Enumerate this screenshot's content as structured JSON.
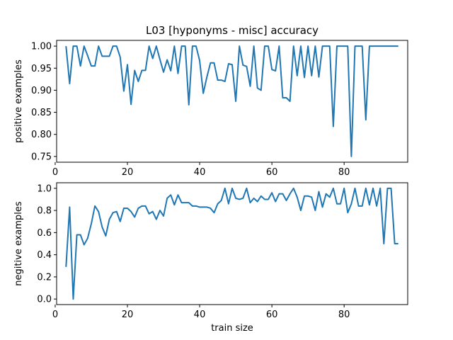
{
  "chart_data": {
    "type": "line",
    "title": "L03 [hyponyms - misc] accuracy",
    "xlabel": "train size",
    "line_color": "#1f77b4",
    "x": [
      3,
      4,
      5,
      6,
      7,
      8,
      9,
      10,
      11,
      12,
      13,
      14,
      15,
      16,
      17,
      18,
      19,
      20,
      21,
      22,
      23,
      24,
      25,
      26,
      27,
      28,
      29,
      30,
      31,
      32,
      33,
      34,
      35,
      36,
      37,
      38,
      39,
      40,
      41,
      42,
      43,
      44,
      45,
      46,
      47,
      48,
      49,
      50,
      51,
      52,
      53,
      54,
      55,
      56,
      57,
      58,
      59,
      60,
      61,
      62,
      63,
      64,
      65,
      66,
      67,
      68,
      69,
      70,
      71,
      72,
      73,
      74,
      75,
      76,
      77,
      78,
      79,
      80,
      81,
      82,
      83,
      84,
      85,
      86,
      87,
      88,
      89,
      90,
      91,
      92,
      93,
      94,
      95
    ],
    "panels": [
      {
        "ylabel": "positive examples",
        "xlim": [
          0.4,
          97.6
        ],
        "ylim": [
          0.737,
          1.013
        ],
        "xticks": [
          0,
          20,
          40,
          60,
          80
        ],
        "xtick_labels": [
          "0",
          "20",
          "40",
          "60",
          "80"
        ],
        "yticks": [
          0.75,
          0.8,
          0.85,
          0.9,
          0.95,
          1.0
        ],
        "ytick_labels": [
          "0.75",
          "0.80",
          "0.85",
          "0.90",
          "0.95",
          "1.00"
        ],
        "values": [
          1.0,
          0.915,
          1.0,
          1.0,
          0.955,
          1.0,
          0.978,
          0.955,
          0.955,
          1.0,
          0.977,
          0.977,
          0.977,
          1.0,
          1.0,
          0.975,
          0.898,
          0.958,
          0.868,
          0.945,
          0.92,
          0.945,
          0.945,
          1.0,
          0.972,
          1.0,
          0.97,
          0.941,
          0.969,
          0.944,
          1.0,
          0.938,
          1.0,
          1.0,
          0.867,
          1.0,
          1.0,
          0.967,
          0.893,
          0.93,
          0.962,
          0.962,
          0.923,
          0.923,
          0.92,
          0.96,
          0.958,
          0.875,
          1.0,
          0.957,
          0.954,
          0.909,
          1.0,
          0.905,
          0.9,
          1.0,
          1.0,
          0.947,
          0.944,
          1.0,
          0.883,
          0.883,
          0.875,
          1.0,
          0.933,
          1.0,
          0.929,
          1.0,
          0.933,
          1.0,
          0.93,
          1.0,
          1.0,
          1.0,
          0.818,
          1.0,
          1.0,
          1.0,
          1.0,
          0.75,
          1.0,
          1.0,
          1.0,
          0.833,
          1.0,
          1.0,
          1.0,
          1.0,
          1.0,
          1.0,
          1.0,
          1.0,
          1.0
        ]
      },
      {
        "ylabel": "negitive examples",
        "xtick_labels": [
          "0",
          "20",
          "40",
          "60",
          "80"
        ],
        "xlim": [
          0.4,
          97.6
        ],
        "ylim": [
          -0.05,
          1.05
        ],
        "xticks": [
          0,
          20,
          40,
          60,
          80
        ],
        "yticks": [
          0.0,
          0.2,
          0.4,
          0.6,
          0.8,
          1.0
        ],
        "ytick_labels": [
          "0.0",
          "0.2",
          "0.4",
          "0.6",
          "0.8",
          "1.0"
        ],
        "values": [
          0.29,
          0.83,
          0.0,
          0.58,
          0.58,
          0.49,
          0.55,
          0.68,
          0.84,
          0.79,
          0.65,
          0.57,
          0.72,
          0.78,
          0.79,
          0.7,
          0.82,
          0.82,
          0.79,
          0.74,
          0.82,
          0.84,
          0.84,
          0.77,
          0.79,
          0.72,
          0.8,
          0.75,
          0.91,
          0.94,
          0.85,
          0.94,
          0.87,
          0.87,
          0.87,
          0.84,
          0.84,
          0.83,
          0.83,
          0.83,
          0.82,
          0.78,
          0.86,
          0.89,
          1.0,
          0.86,
          1.0,
          0.91,
          0.9,
          0.91,
          1.0,
          0.87,
          0.91,
          0.88,
          0.93,
          0.9,
          0.9,
          0.96,
          0.88,
          0.95,
          0.95,
          0.89,
          0.95,
          1.0,
          0.92,
          0.8,
          0.93,
          0.93,
          0.92,
          0.8,
          0.97,
          0.83,
          0.95,
          0.92,
          1.0,
          0.86,
          0.86,
          1.0,
          0.78,
          0.86,
          1.0,
          0.84,
          0.84,
          1.0,
          0.85,
          1.0,
          0.84,
          1.0,
          0.5,
          1.0,
          1.0,
          0.5,
          0.5
        ]
      }
    ]
  }
}
